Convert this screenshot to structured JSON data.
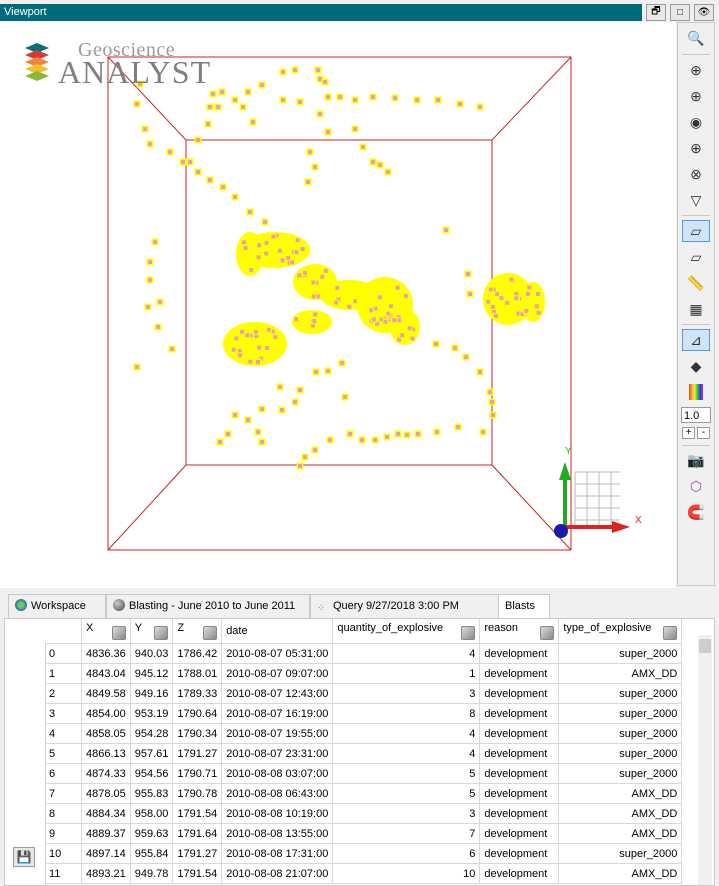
{
  "window": {
    "title": "Viewport",
    "restore_icon": "restore-icon",
    "maximize_icon": "maximize-icon",
    "visibility_icon": "eye-icon"
  },
  "logo": {
    "line1": "Geoscience",
    "line2": "ANALYST"
  },
  "axes": {
    "x_label": "X",
    "y_label": "Y"
  },
  "toolbar": {
    "zoom_value": "1.0",
    "plus_label": "+",
    "minus_label": "-",
    "icons": [
      "zoom-extents-icon",
      "pan-north-icon",
      "pan-up-icon",
      "target-icon",
      "pan-down-icon",
      "rotate-icon",
      "filter-icon",
      "box-3d-icon",
      "box-light-icon",
      "ruler-icon",
      "grid-icon",
      "axes-icon",
      "paint-bucket-icon",
      "colorbar-icon",
      "camera-icon",
      "cube-wire-icon",
      "magnet-icon"
    ]
  },
  "tabs": [
    {
      "label": "Workspace",
      "icon": "workspace-icon"
    },
    {
      "label": "Blasting - June 2010 to June 2011",
      "icon": "sphere-icon"
    },
    {
      "label": "Query 9/27/2018 3:00 PM",
      "icon": "points-icon"
    },
    {
      "label": "Blasts",
      "icon": ""
    }
  ],
  "table": {
    "columns": [
      "",
      "X",
      "Y",
      "Z",
      "date",
      "quantity_of_explosive",
      "reason",
      "type_of_explosive"
    ],
    "rows": [
      [
        "0",
        "4836.36",
        "940.03",
        "1786.42",
        "2010-08-07 05:31:00",
        "4",
        "development",
        "super_2000"
      ],
      [
        "1",
        "4843.04",
        "945.12",
        "1788.01",
        "2010-08-07 09:07:00",
        "1",
        "development",
        "AMX_DD"
      ],
      [
        "2",
        "4849.58",
        "949.16",
        "1789.33",
        "2010-08-07 12:43:00",
        "3",
        "development",
        "super_2000"
      ],
      [
        "3",
        "4854.00",
        "953.19",
        "1790.64",
        "2010-08-07 16:19:00",
        "8",
        "development",
        "super_2000"
      ],
      [
        "4",
        "4858.05",
        "954.28",
        "1790.34",
        "2010-08-07 19:55:00",
        "4",
        "development",
        "super_2000"
      ],
      [
        "5",
        "4866.13",
        "957.61",
        "1791.27",
        "2010-08-07 23:31:00",
        "4",
        "development",
        "super_2000"
      ],
      [
        "6",
        "4874.33",
        "954.56",
        "1790.71",
        "2010-08-08 03:07:00",
        "5",
        "development",
        "super_2000"
      ],
      [
        "7",
        "4878.05",
        "955.83",
        "1790.78",
        "2010-08-08 06:43:00",
        "5",
        "development",
        "AMX_DD"
      ],
      [
        "8",
        "4884.34",
        "958.00",
        "1791.54",
        "2010-08-08 10:19:00",
        "3",
        "development",
        "AMX_DD"
      ],
      [
        "9",
        "4889.37",
        "959.63",
        "1791.64",
        "2010-08-08 13:55:00",
        "7",
        "development",
        "AMX_DD"
      ],
      [
        "10",
        "4897.14",
        "955.84",
        "1791.27",
        "2010-08-08 17:31:00",
        "6",
        "development",
        "super_2000"
      ],
      [
        "11",
        "4893.21",
        "949.78",
        "1791.54",
        "2010-08-08 21:07:00",
        "10",
        "development",
        "AMX_DD"
      ]
    ]
  },
  "save_icon": "save-icon",
  "colors": {
    "title_bar": "#006b7a",
    "box": "#cc2222",
    "points_fill": "#ffff00",
    "points_core": "#e8a0b0"
  }
}
